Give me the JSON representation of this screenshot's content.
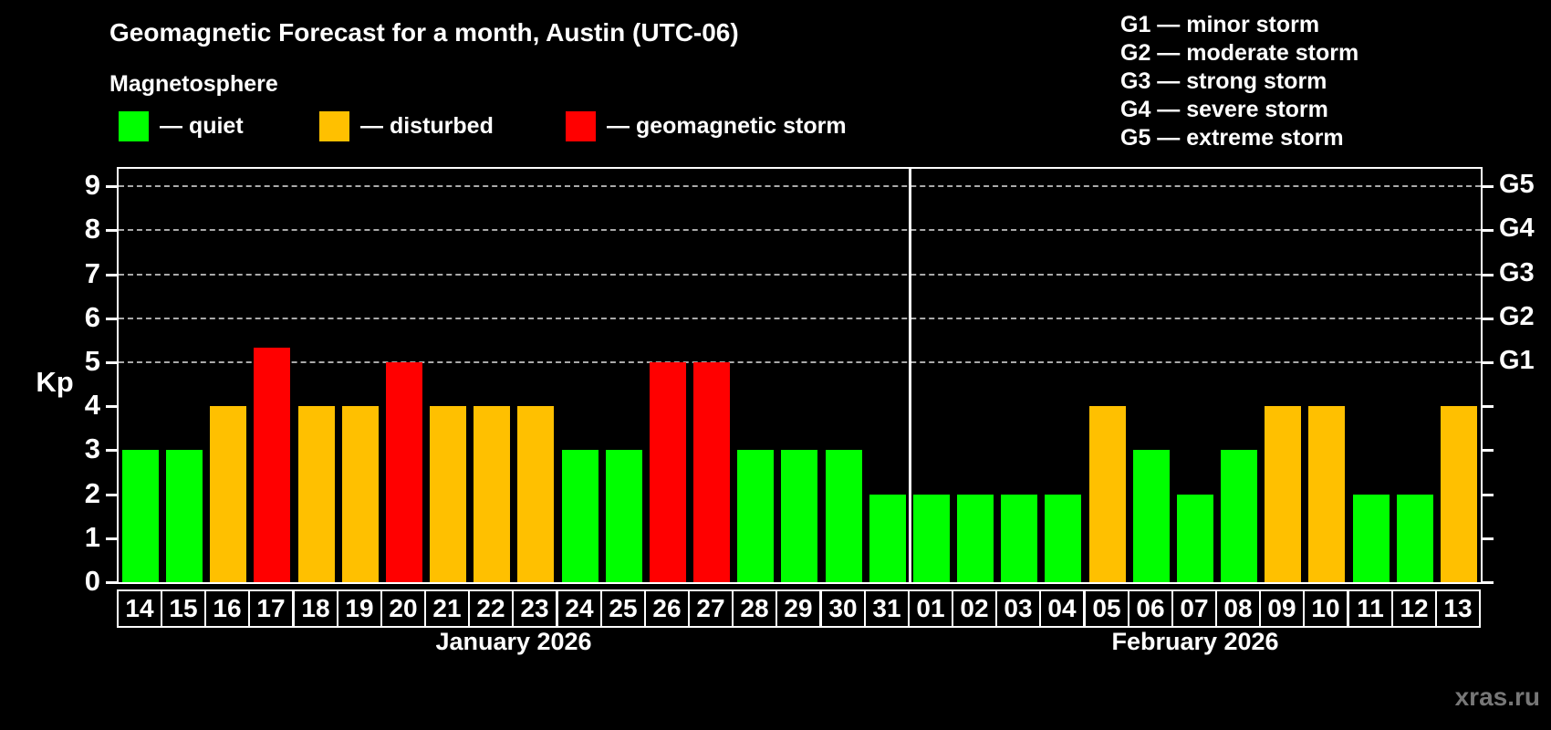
{
  "header": {
    "title": "Geomagnetic Forecast for a month, Austin (UTC-06)",
    "subtitle": "Magnetosphere"
  },
  "legend": {
    "items": [
      {
        "status": "quiet",
        "label": "— quiet",
        "color": "#00ff00"
      },
      {
        "status": "disturbed",
        "label": "— disturbed",
        "color": "#ffc000"
      },
      {
        "status": "storm",
        "label": "— geomagnetic storm",
        "color": "#ff0000"
      }
    ]
  },
  "g_legend": [
    "G1 — minor storm",
    "G2 — moderate storm",
    "G3 — strong storm",
    "G4 — severe storm",
    "G5 — extreme storm"
  ],
  "watermark": "xras.ru",
  "colors": {
    "background": "#000000",
    "text": "#ffffff",
    "quiet": "#00ff00",
    "disturbed": "#ffc000",
    "storm": "#ff0000",
    "gridline": "#aaaaaa",
    "axis": "#ffffff",
    "watermark": "#777777"
  },
  "chart_data": {
    "type": "bar",
    "title": "Geomagnetic Forecast for a month, Austin (UTC-06)",
    "xlabel": "",
    "ylabel": "Kp",
    "ylim": [
      0,
      9.4
    ],
    "yticks": [
      0,
      1,
      2,
      3,
      4,
      5,
      6,
      7,
      8,
      9
    ],
    "gridlines_at": [
      5,
      6,
      7,
      8,
      9
    ],
    "grid": "dashed horizontal lines only at storm levels Kp 5-9",
    "legend_position": "top",
    "right_axis": [
      {
        "kp": 5,
        "label": "G1"
      },
      {
        "kp": 6,
        "label": "G2"
      },
      {
        "kp": 7,
        "label": "G3"
      },
      {
        "kp": 8,
        "label": "G4"
      },
      {
        "kp": 9,
        "label": "G5"
      }
    ],
    "months": [
      {
        "label": "January 2026",
        "days": 18
      },
      {
        "label": "February 2026",
        "days": 13
      }
    ],
    "bars": [
      {
        "month": "January 2026",
        "day": "14",
        "kp": 3,
        "status": "quiet"
      },
      {
        "month": "January 2026",
        "day": "15",
        "kp": 3,
        "status": "quiet"
      },
      {
        "month": "January 2026",
        "day": "16",
        "kp": 4,
        "status": "disturbed"
      },
      {
        "month": "January 2026",
        "day": "17",
        "kp": 5.33,
        "status": "storm"
      },
      {
        "month": "January 2026",
        "day": "18",
        "kp": 4,
        "status": "disturbed"
      },
      {
        "month": "January 2026",
        "day": "19",
        "kp": 4,
        "status": "disturbed"
      },
      {
        "month": "January 2026",
        "day": "20",
        "kp": 5,
        "status": "storm"
      },
      {
        "month": "January 2026",
        "day": "21",
        "kp": 4,
        "status": "disturbed"
      },
      {
        "month": "January 2026",
        "day": "22",
        "kp": 4,
        "status": "disturbed"
      },
      {
        "month": "January 2026",
        "day": "23",
        "kp": 4,
        "status": "disturbed"
      },
      {
        "month": "January 2026",
        "day": "24",
        "kp": 3,
        "status": "quiet"
      },
      {
        "month": "January 2026",
        "day": "25",
        "kp": 3,
        "status": "quiet"
      },
      {
        "month": "January 2026",
        "day": "26",
        "kp": 5,
        "status": "storm"
      },
      {
        "month": "January 2026",
        "day": "27",
        "kp": 5,
        "status": "storm"
      },
      {
        "month": "January 2026",
        "day": "28",
        "kp": 3,
        "status": "quiet"
      },
      {
        "month": "January 2026",
        "day": "29",
        "kp": 3,
        "status": "quiet"
      },
      {
        "month": "January 2026",
        "day": "30",
        "kp": 3,
        "status": "quiet"
      },
      {
        "month": "January 2026",
        "day": "31",
        "kp": 2,
        "status": "quiet"
      },
      {
        "month": "February 2026",
        "day": "01",
        "kp": 2,
        "status": "quiet"
      },
      {
        "month": "February 2026",
        "day": "02",
        "kp": 2,
        "status": "quiet"
      },
      {
        "month": "February 2026",
        "day": "03",
        "kp": 2,
        "status": "quiet"
      },
      {
        "month": "February 2026",
        "day": "04",
        "kp": 2,
        "status": "quiet"
      },
      {
        "month": "February 2026",
        "day": "05",
        "kp": 4,
        "status": "disturbed"
      },
      {
        "month": "February 2026",
        "day": "06",
        "kp": 3,
        "status": "quiet"
      },
      {
        "month": "February 2026",
        "day": "07",
        "kp": 2,
        "status": "quiet"
      },
      {
        "month": "February 2026",
        "day": "08",
        "kp": 3,
        "status": "quiet"
      },
      {
        "month": "February 2026",
        "day": "09",
        "kp": 4,
        "status": "disturbed"
      },
      {
        "month": "February 2026",
        "day": "10",
        "kp": 4,
        "status": "disturbed"
      },
      {
        "month": "February 2026",
        "day": "11",
        "kp": 2,
        "status": "quiet"
      },
      {
        "month": "February 2026",
        "day": "12",
        "kp": 2,
        "status": "quiet"
      },
      {
        "month": "February 2026",
        "day": "13",
        "kp": 4,
        "status": "disturbed"
      }
    ]
  }
}
